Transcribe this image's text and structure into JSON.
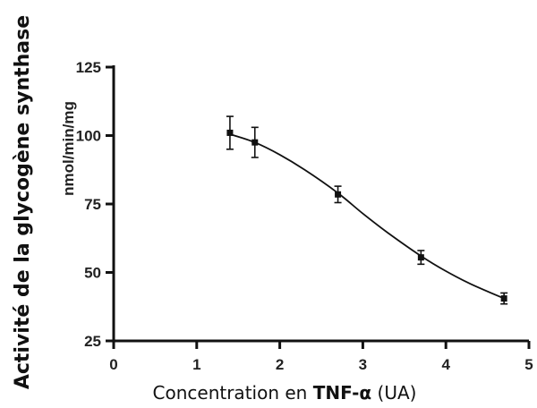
{
  "chart_data": {
    "type": "line",
    "ylabel": "Activité de la glycogène synthase",
    "yunit": "nmol/min/mg",
    "xlabel": {
      "prefix": "Concentration en ",
      "bold": "TNF-α",
      "suffix": " (UA)"
    },
    "xlim": [
      0,
      5
    ],
    "ylim": [
      25,
      125
    ],
    "x_ticks": [
      0,
      1,
      2,
      3,
      4,
      5
    ],
    "y_ticks": [
      25,
      50,
      75,
      100,
      125
    ],
    "grid": false,
    "series": [
      {
        "points": [
          {
            "x": 1.4,
            "y": 101,
            "err": 6
          },
          {
            "x": 1.7,
            "y": 97.5,
            "err": 5.5
          },
          {
            "x": 2.7,
            "y": 78.5,
            "err": 3
          },
          {
            "x": 3.7,
            "y": 55.5,
            "err": 2.5
          },
          {
            "x": 4.7,
            "y": 40.5,
            "err": 2
          }
        ],
        "fit_curve": [
          [
            1.4,
            100.5
          ],
          [
            1.7,
            97.5
          ],
          [
            2.0,
            93.0
          ],
          [
            2.3,
            87.5
          ],
          [
            2.7,
            79.0
          ],
          [
            3.0,
            71.5
          ],
          [
            3.3,
            64.5
          ],
          [
            3.7,
            56.0
          ],
          [
            4.0,
            50.5
          ],
          [
            4.3,
            45.8
          ],
          [
            4.7,
            40.5
          ]
        ]
      }
    ],
    "colors": {
      "line": "#111111",
      "axis": "#111111"
    }
  }
}
